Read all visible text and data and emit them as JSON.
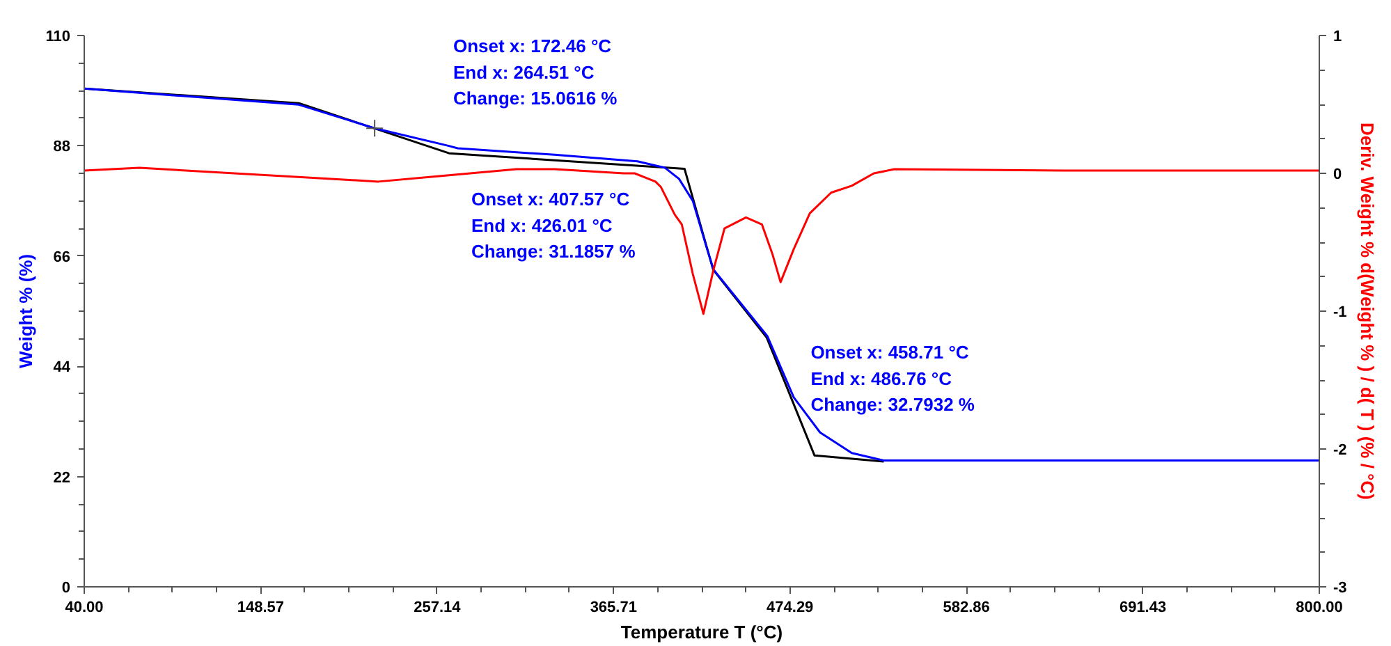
{
  "chart_data": {
    "type": "line",
    "xlabel": "Temperature T (°C)",
    "ylabel": "Weight % (%)",
    "y2label": "Deriv. Weight % d(Weight % ) / d( T ) (% / °C)",
    "xlim": [
      40,
      800
    ],
    "xticks": [
      {
        "value": 40,
        "label": "40.00"
      },
      {
        "value": 148.57,
        "label": "148.57"
      },
      {
        "value": 257.14,
        "label": "257.14"
      },
      {
        "value": 365.71,
        "label": "365.71"
      },
      {
        "value": 474.29,
        "label": "474.29"
      },
      {
        "value": 582.86,
        "label": "582.86"
      },
      {
        "value": 691.43,
        "label": "691.43"
      },
      {
        "value": 800,
        "label": "800.00"
      }
    ],
    "ylim": [
      0,
      110
    ],
    "yticks": [
      0,
      22,
      44,
      66,
      88,
      110
    ],
    "y2lim": [
      -3,
      1
    ],
    "y2ticks": [
      -3,
      -2,
      -1,
      0,
      1
    ],
    "grid": false,
    "series": [
      {
        "color": "#000000",
        "x": [
          40,
          172,
          264.5,
          409.4,
          427,
          460,
          489.4,
          532
        ],
        "values": [
          99.4,
          96.5,
          86.5,
          83.4,
          63.3,
          49.7,
          26.2,
          25
        ]
      },
      {
        "color": "#0000ff",
        "x": [
          40,
          172,
          218.7,
          264,
          269.8,
          329.4,
          380.4,
          397.4,
          406,
          414.5,
          423,
          427.2,
          460.4,
          476.6,
          492.8,
          512.3,
          531.9,
          600,
          700,
          800
        ],
        "values": [
          99.4,
          96.2,
          91.5,
          88,
          87.5,
          86.2,
          84.9,
          83.6,
          81.4,
          77,
          67.7,
          63.3,
          50,
          37.8,
          30.8,
          26.7,
          25.2,
          25.2,
          25.2,
          25.2
        ]
      },
      {
        "type": "scatter",
        "marker": "cross",
        "color": "#555555",
        "x": [
          218.7
        ],
        "values": [
          91.5
        ]
      },
      {
        "axis": "y2",
        "color": "#ff0000",
        "x": [
          40,
          74,
          221,
          306,
          329.4,
          372,
          378.7,
          391.5,
          394.9,
          403.4,
          407.7,
          414.5,
          421,
          427.2,
          434,
          447.2,
          457,
          463.6,
          468.5,
          476.6,
          486.5,
          499.6,
          512.3,
          525.9,
          538.6,
          650,
          800
        ],
        "values": [
          0.02,
          0.04,
          -0.06,
          0.03,
          0.03,
          0.0,
          0.0,
          -0.06,
          -0.1,
          -0.3,
          -0.37,
          -0.73,
          -1.02,
          -0.7,
          -0.4,
          -0.32,
          -0.37,
          -0.59,
          -0.79,
          -0.55,
          -0.29,
          -0.14,
          -0.09,
          0.0,
          0.03,
          0.02,
          0.02
        ]
      }
    ],
    "annotations": [
      "Onset x: 172.46 °C\nEnd x: 264.51 °C\nChange: 15.0616 %",
      "Onset x: 407.57 °C\nEnd x: 426.01 °C\nChange: 31.1857 %",
      "Onset x: 458.71 °C\nEnd x: 486.76 °C\nChange: 32.7932 %"
    ]
  }
}
